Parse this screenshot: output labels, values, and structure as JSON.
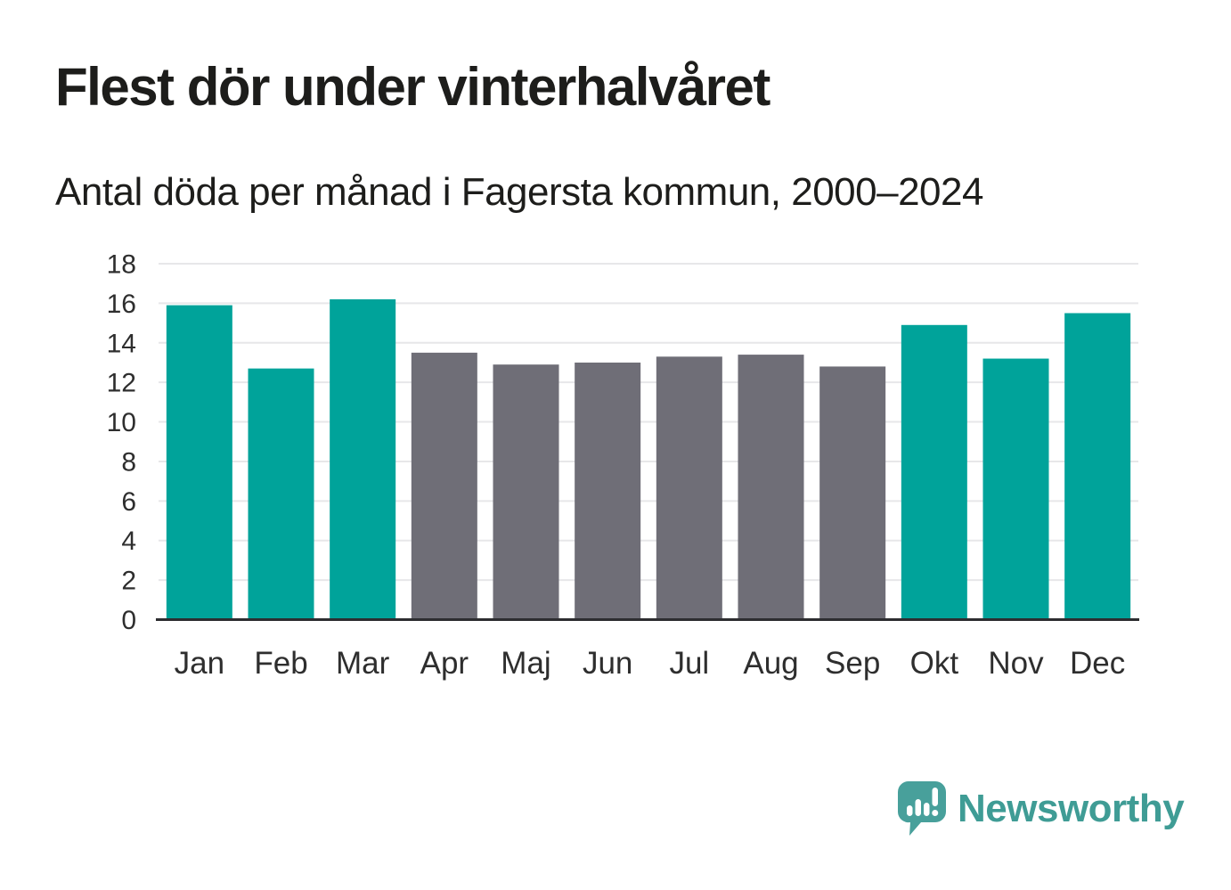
{
  "chart_data": {
    "type": "bar",
    "title": "Flest dör under vinterhalvåret",
    "subtitle": "Antal döda per månad i Fagersta kommun, 2000–2024",
    "categories": [
      "Jan",
      "Feb",
      "Mar",
      "Apr",
      "Maj",
      "Jun",
      "Jul",
      "Aug",
      "Sep",
      "Okt",
      "Nov",
      "Dec"
    ],
    "values": [
      15.9,
      12.7,
      16.2,
      13.5,
      12.9,
      13.0,
      13.3,
      13.4,
      12.8,
      14.9,
      13.2,
      15.5
    ],
    "bar_color_names": [
      "teal",
      "teal",
      "teal",
      "gray",
      "gray",
      "gray",
      "gray",
      "gray",
      "gray",
      "teal",
      "teal",
      "teal"
    ],
    "palette": {
      "teal": "#00A39A",
      "gray": "#6F6E77"
    },
    "xlabel": "",
    "ylabel": "",
    "ylim": [
      0,
      18
    ],
    "yticks": [
      0,
      2,
      4,
      6,
      8,
      10,
      12,
      14,
      16,
      18
    ],
    "grid": "horizontal",
    "legend": "none"
  },
  "colors": {
    "background": "#FFFFFF",
    "gridline": "#E7E7E9",
    "axis_line": "#2D2D30",
    "tick_text": "#2E2E2E",
    "heading_text": "#1D1D1B"
  },
  "branding": {
    "logo_text": "Newsworthy",
    "logo_text_color": "#3F9C95",
    "logo_icon": "newsworthy-speech-bubble-barchart-icon",
    "logo_icon_color": "#48A09B"
  }
}
